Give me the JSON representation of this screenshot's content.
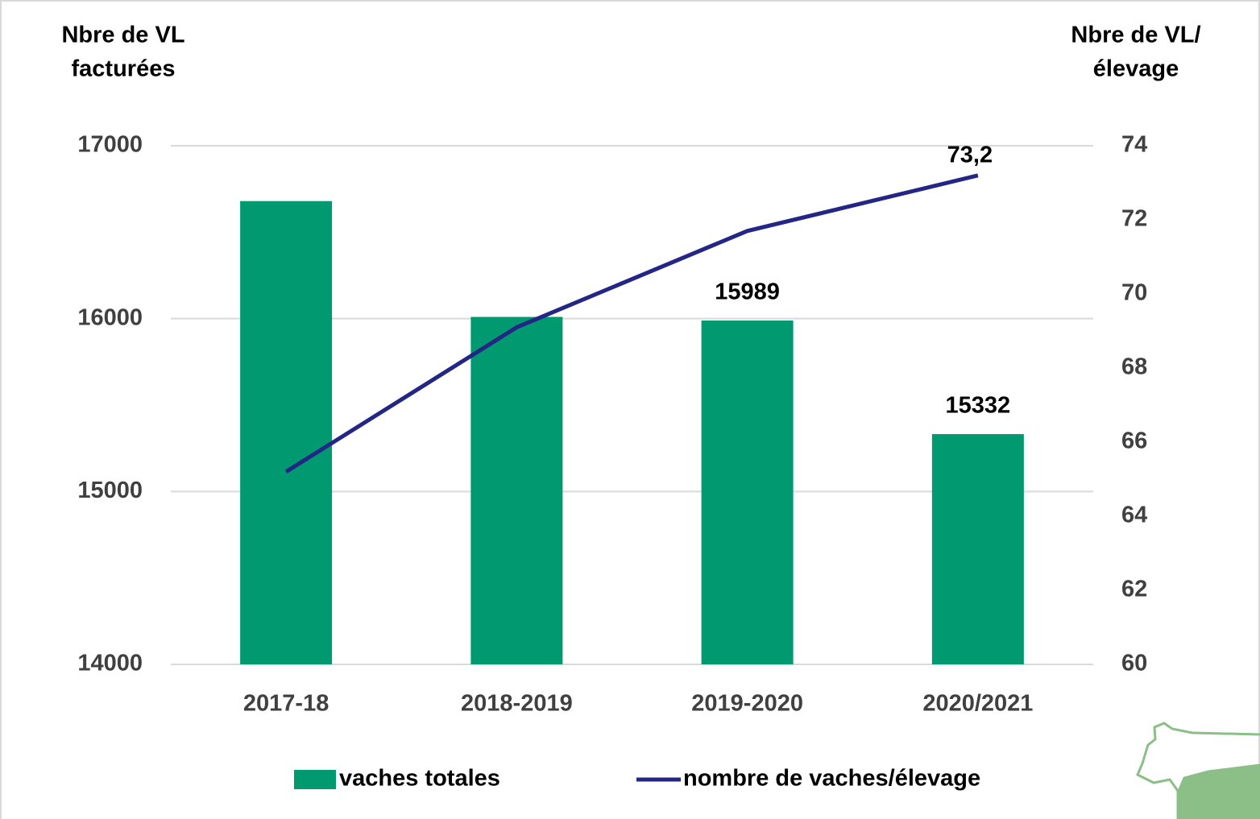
{
  "chart_data": {
    "type": "bar-line",
    "ylabel": [
      "Nbre de VL",
      "facturées"
    ],
    "y2label": [
      "Nbre de VL/",
      "élevage"
    ],
    "categories": [
      "2017-18",
      "2018-2019",
      "2019-2020",
      "2020/2021"
    ],
    "series": [
      {
        "name": "vaches totales",
        "type": "bar",
        "color": "#009970",
        "values": [
          16680,
          16010,
          15989,
          15332
        ],
        "value_labels": [
          null,
          null,
          "15989",
          "15332"
        ]
      },
      {
        "name": "nombre de vaches/élevage",
        "type": "line",
        "axis": "y2",
        "color": "#232684",
        "values": [
          65.2,
          69.1,
          71.7,
          73.2
        ],
        "value_labels": [
          null,
          null,
          null,
          "73,2"
        ]
      }
    ],
    "ylim": [
      14000,
      17000
    ],
    "yticks": [
      14000,
      15000,
      16000,
      17000
    ],
    "y2lim": [
      60,
      74
    ],
    "y2ticks": [
      60,
      62,
      64,
      66,
      68,
      70,
      72,
      74
    ],
    "grid": true,
    "legend": "bottom"
  }
}
